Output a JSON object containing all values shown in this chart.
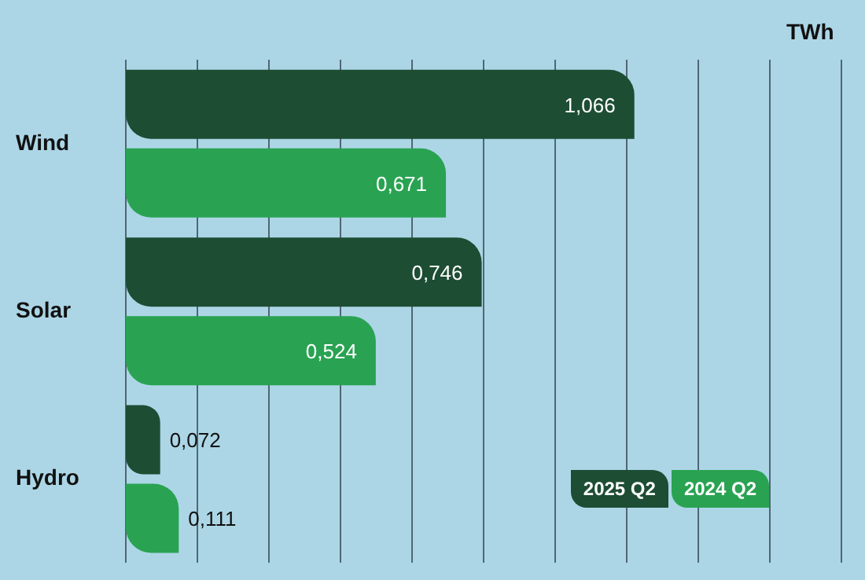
{
  "chart_data": {
    "type": "bar",
    "orientation": "horizontal",
    "annotations": [
      "TWh"
    ],
    "categories": [
      "Wind",
      "Solar",
      "Hydro"
    ],
    "series": [
      {
        "name": "2025 Q2",
        "color": "#1d4d33",
        "values": [
          1.066,
          0.746,
          0.072
        ],
        "value_labels": [
          "1,066",
          "0,746",
          "0,072"
        ]
      },
      {
        "name": "2024 Q2",
        "color": "#29a352",
        "values": [
          0.671,
          0.524,
          0.111
        ],
        "value_labels": [
          "0,671",
          "0,524",
          "0,111"
        ]
      }
    ],
    "tick_labels": "y",
    "grid": "x",
    "legend": "bottom right"
  }
}
